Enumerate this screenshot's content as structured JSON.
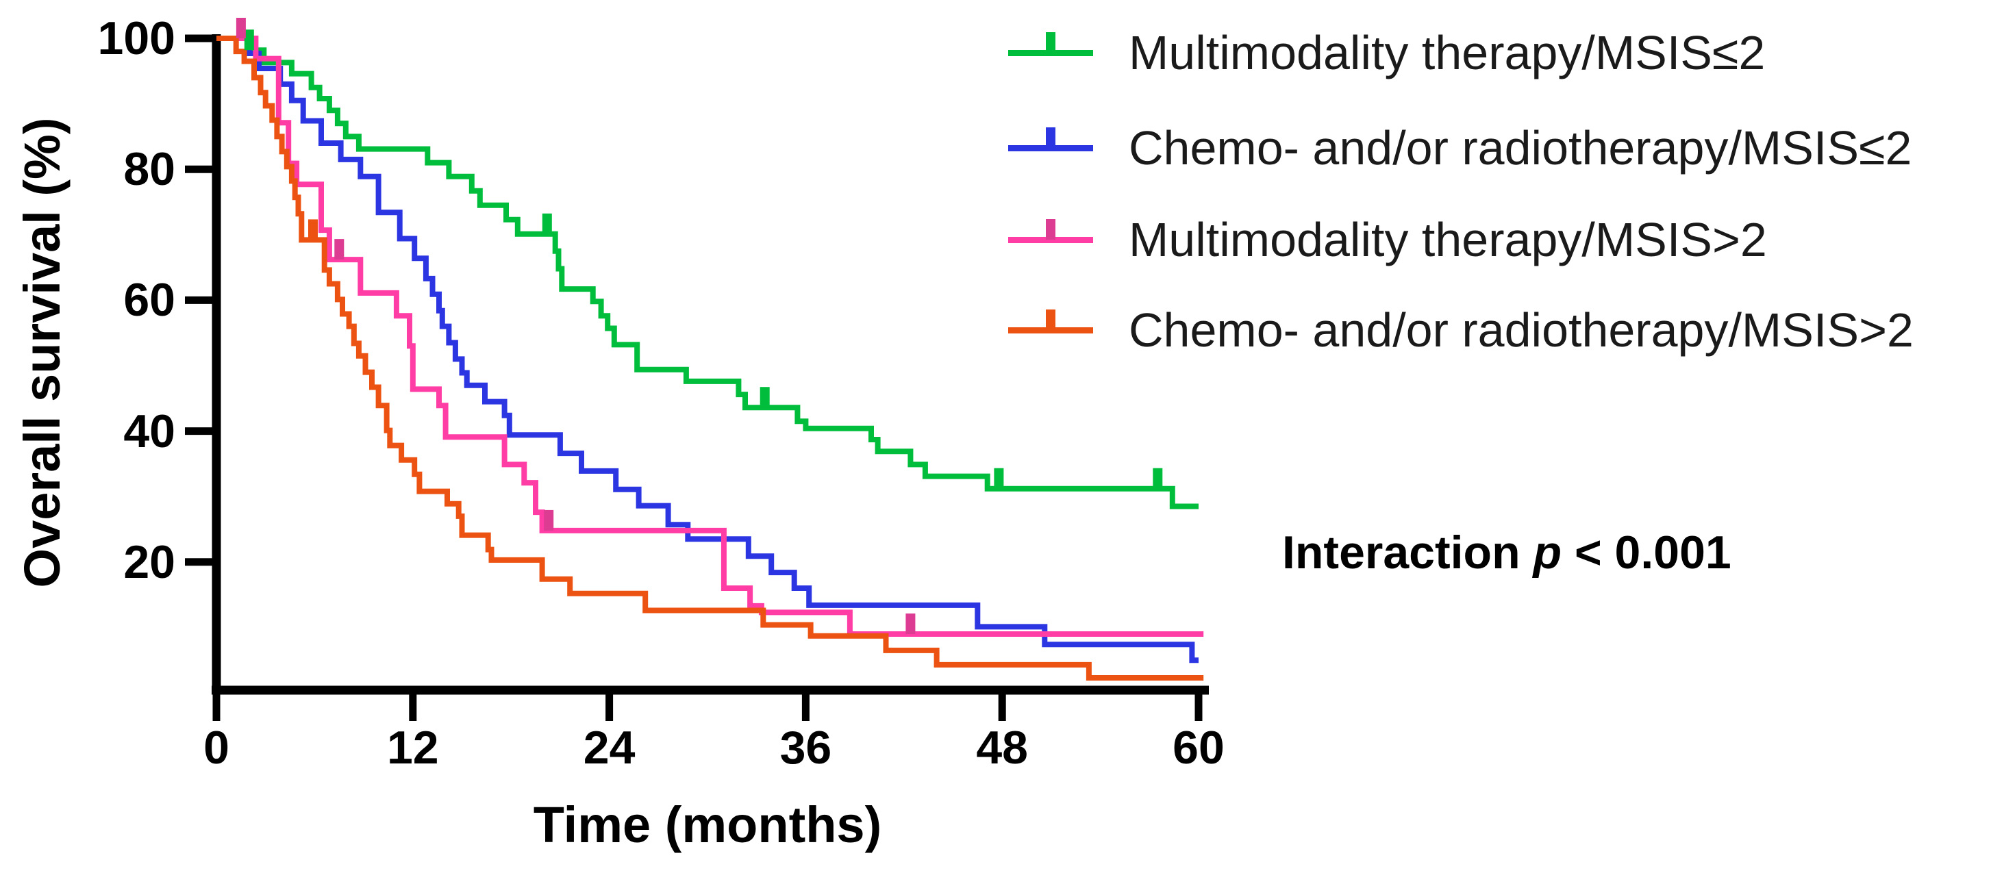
{
  "figure": {
    "background": "#ffffff"
  },
  "annotation": {
    "prefix": "Interaction ",
    "p_symbol": "p",
    "suffix": " < 0.001"
  },
  "chart_data": {
    "type": "line",
    "subtype": "kaplan-meier-step",
    "title": "",
    "xlabel": "Time (months)",
    "ylabel": "Overall survival (%)",
    "xlim": [
      0,
      60
    ],
    "ylim": [
      0,
      100
    ],
    "x_ticks": [
      0,
      12,
      24,
      36,
      48,
      60
    ],
    "y_ticks": [
      100,
      80,
      60,
      40,
      20
    ],
    "grid": false,
    "legend_position": "top-right",
    "axis_color": "#000000",
    "series": [
      {
        "name": "Multimodality therapy/MSIS≤2",
        "color": "#00BE3C",
        "end_month": 60,
        "points": [
          [
            0,
            100
          ],
          [
            2.2,
            98.2
          ],
          [
            2.9,
            96.3
          ],
          [
            4.6,
            94.6
          ],
          [
            5.8,
            92.5
          ],
          [
            6.3,
            90.8
          ],
          [
            6.9,
            89.0
          ],
          [
            7.4,
            87.0
          ],
          [
            7.9,
            85.0
          ],
          [
            8.7,
            83.1
          ],
          [
            12.9,
            81.0
          ],
          [
            14.2,
            78.9
          ],
          [
            15.6,
            76.7
          ],
          [
            16.1,
            74.5
          ],
          [
            17.7,
            72.3
          ],
          [
            18.4,
            70.1
          ],
          [
            20.7,
            67.5
          ],
          [
            20.9,
            64.8
          ],
          [
            21.1,
            61.7
          ],
          [
            23.0,
            59.8
          ],
          [
            23.5,
            57.6
          ],
          [
            23.9,
            55.7
          ],
          [
            24.3,
            53.2
          ],
          [
            25.7,
            49.4
          ],
          [
            28.7,
            47.6
          ],
          [
            31.9,
            45.6
          ],
          [
            32.3,
            43.6
          ],
          [
            35.5,
            41.5
          ],
          [
            36.0,
            40.4
          ],
          [
            40.0,
            38.7
          ],
          [
            40.4,
            36.9
          ],
          [
            42.4,
            34.9
          ],
          [
            43.3,
            33.1
          ],
          [
            47.1,
            31.2
          ],
          [
            58.4,
            28.5
          ]
        ],
        "censors": [
          [
            2.0,
            98.2
          ],
          [
            20.2,
            70.1
          ],
          [
            33.5,
            43.6
          ],
          [
            47.8,
            31.2
          ],
          [
            57.5,
            31.2
          ]
        ]
      },
      {
        "name": "Chemo- and/or radiotherapy/MSIS≤2",
        "color": "#2C35E2",
        "end_month": 60,
        "points": [
          [
            0,
            100
          ],
          [
            2.0,
            97.7
          ],
          [
            2.6,
            95.4
          ],
          [
            3.9,
            93.0
          ],
          [
            4.6,
            90.5
          ],
          [
            5.3,
            87.4
          ],
          [
            6.4,
            84.0
          ],
          [
            7.6,
            81.5
          ],
          [
            8.8,
            78.9
          ],
          [
            9.9,
            73.4
          ],
          [
            11.2,
            69.4
          ],
          [
            12.1,
            66.4
          ],
          [
            12.8,
            63.3
          ],
          [
            13.2,
            60.9
          ],
          [
            13.6,
            58.4
          ],
          [
            13.8,
            56.0
          ],
          [
            14.2,
            53.5
          ],
          [
            14.6,
            51.0
          ],
          [
            15.0,
            48.9
          ],
          [
            15.3,
            47.0
          ],
          [
            16.4,
            44.5
          ],
          [
            17.6,
            42.4
          ],
          [
            17.9,
            39.4
          ],
          [
            21.0,
            36.6
          ],
          [
            22.3,
            33.9
          ],
          [
            24.4,
            31.1
          ],
          [
            25.8,
            28.6
          ],
          [
            27.6,
            25.7
          ],
          [
            28.8,
            23.5
          ],
          [
            32.5,
            20.9
          ],
          [
            33.9,
            18.4
          ],
          [
            35.3,
            16.0
          ],
          [
            36.2,
            13.4
          ],
          [
            46.5,
            10.1
          ],
          [
            50.6,
            7.4
          ],
          [
            59.6,
            5.0
          ]
        ],
        "censors": []
      },
      {
        "name": "Multimodality therapy/MSIS>2",
        "color": "#FF3DA5",
        "censor_color": "#DC3C92",
        "end_month": 60.3,
        "points": [
          [
            0,
            100
          ],
          [
            2.4,
            96.9
          ],
          [
            3.8,
            87.1
          ],
          [
            4.4,
            80.9
          ],
          [
            4.9,
            77.7
          ],
          [
            6.4,
            70.7
          ],
          [
            6.9,
            66.2
          ],
          [
            8.8,
            61.1
          ],
          [
            11.0,
            57.6
          ],
          [
            11.8,
            53.0
          ],
          [
            12.0,
            46.4
          ],
          [
            13.6,
            43.9
          ],
          [
            14.0,
            39.1
          ],
          [
            17.6,
            34.9
          ],
          [
            18.8,
            32.1
          ],
          [
            19.5,
            27.6
          ],
          [
            19.9,
            24.8
          ],
          [
            31.0,
            16.0
          ],
          [
            32.6,
            13.3
          ],
          [
            33.3,
            12.3
          ],
          [
            38.7,
            9.0
          ]
        ],
        "censors": [
          [
            1.5,
            100
          ],
          [
            7.5,
            66.2
          ],
          [
            20.3,
            24.8
          ],
          [
            42.4,
            9.0
          ]
        ]
      },
      {
        "name": "Chemo- and/or radiotherapy/MSIS>2",
        "color": "#EC5212",
        "end_month": 60.3,
        "points": [
          [
            0,
            100
          ],
          [
            1.2,
            98.0
          ],
          [
            1.7,
            96.5
          ],
          [
            2.3,
            94.0
          ],
          [
            2.7,
            91.7
          ],
          [
            3.0,
            89.7
          ],
          [
            3.4,
            87.5
          ],
          [
            3.7,
            85.0
          ],
          [
            4.0,
            82.7
          ],
          [
            4.3,
            80.4
          ],
          [
            4.6,
            78.2
          ],
          [
            4.8,
            75.7
          ],
          [
            5.0,
            73.2
          ],
          [
            5.2,
            69.2
          ],
          [
            6.6,
            64.6
          ],
          [
            6.9,
            62.5
          ],
          [
            7.4,
            60.1
          ],
          [
            7.7,
            57.9
          ],
          [
            8.1,
            56.0
          ],
          [
            8.4,
            53.4
          ],
          [
            8.7,
            51.5
          ],
          [
            9.1,
            49.0
          ],
          [
            9.5,
            46.7
          ],
          [
            9.9,
            43.9
          ],
          [
            10.4,
            40.1
          ],
          [
            10.6,
            37.8
          ],
          [
            11.3,
            35.6
          ],
          [
            12.1,
            33.4
          ],
          [
            12.4,
            30.8
          ],
          [
            14.1,
            28.9
          ],
          [
            14.8,
            27.0
          ],
          [
            15.0,
            24.1
          ],
          [
            16.6,
            21.9
          ],
          [
            16.8,
            20.3
          ],
          [
            19.9,
            17.4
          ],
          [
            21.6,
            15.2
          ],
          [
            26.2,
            12.6
          ],
          [
            33.4,
            10.4
          ],
          [
            36.3,
            8.7
          ],
          [
            40.9,
            6.5
          ],
          [
            44.0,
            4.3
          ],
          [
            53.3,
            2.3
          ]
        ],
        "censors": [
          [
            5.9,
            69.2
          ]
        ]
      }
    ]
  }
}
